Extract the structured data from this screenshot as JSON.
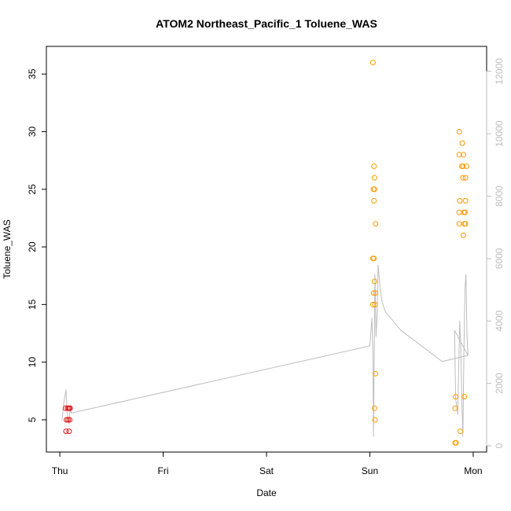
{
  "chart_data": {
    "type": "scatter",
    "title": "ATOM2 Northeast_Pacific_1 Toluene_WAS",
    "xlabel": "Date",
    "ylabel": "Toluene_WAS",
    "x_ticks": [
      "Thu",
      "Fri",
      "Sat",
      "Sun",
      "Mon"
    ],
    "x_tick_values": [
      0,
      1,
      2,
      3,
      4
    ],
    "xlim": [
      -0.13,
      4.13
    ],
    "ylim": [
      2.2,
      37.4
    ],
    "y_ticks": [
      5,
      10,
      15,
      20,
      25,
      30,
      35
    ],
    "y2lim": [
      -200,
      12800
    ],
    "y2_ticks": [
      0,
      2000,
      4000,
      6000,
      8000,
      10000,
      12000
    ],
    "colors": {
      "early": "#e31a1c",
      "late": "#ff9900",
      "altitude": "#bdbdbd"
    },
    "series": [
      {
        "color_key": "early",
        "points": [
          [
            0.055,
            6
          ],
          [
            0.065,
            5
          ],
          [
            0.06,
            4
          ],
          [
            0.075,
            6
          ],
          [
            0.085,
            6
          ],
          [
            0.08,
            5
          ],
          [
            0.09,
            4
          ],
          [
            0.095,
            5
          ],
          [
            0.1,
            6
          ],
          [
            0.09,
            6
          ]
        ]
      },
      {
        "color_key": "late",
        "points": [
          [
            3.03,
            36
          ],
          [
            3.04,
            27
          ],
          [
            3.045,
            26
          ],
          [
            3.035,
            25
          ],
          [
            3.045,
            25
          ],
          [
            3.04,
            24
          ],
          [
            3.055,
            22
          ],
          [
            3.03,
            19
          ],
          [
            3.04,
            19
          ],
          [
            3.045,
            17
          ],
          [
            3.035,
            16
          ],
          [
            3.055,
            16
          ],
          [
            3.03,
            15
          ],
          [
            3.05,
            15
          ],
          [
            3.055,
            9
          ],
          [
            3.045,
            6
          ],
          [
            3.05,
            5
          ],
          [
            3.83,
            7
          ],
          [
            3.825,
            6
          ],
          [
            3.825,
            3
          ],
          [
            3.835,
            3
          ],
          [
            3.865,
            30
          ],
          [
            3.895,
            29
          ],
          [
            3.865,
            28
          ],
          [
            3.905,
            28
          ],
          [
            3.89,
            27
          ],
          [
            3.9,
            27
          ],
          [
            3.935,
            27
          ],
          [
            3.9,
            26
          ],
          [
            3.925,
            26
          ],
          [
            3.87,
            24
          ],
          [
            3.925,
            24
          ],
          [
            3.865,
            23
          ],
          [
            3.91,
            23
          ],
          [
            3.92,
            23
          ],
          [
            3.865,
            22
          ],
          [
            3.915,
            22
          ],
          [
            3.925,
            22
          ],
          [
            3.905,
            21
          ],
          [
            3.915,
            7
          ],
          [
            3.875,
            4
          ]
        ]
      }
    ],
    "altitude_line": [
      [
        0.02,
        800
      ],
      [
        0.04,
        1400
      ],
      [
        0.06,
        1800
      ],
      [
        0.07,
        1100
      ],
      [
        0.08,
        900
      ],
      [
        0.09,
        700
      ],
      [
        0.1,
        1200
      ],
      [
        0.11,
        1050
      ],
      [
        3.0,
        3200
      ],
      [
        3.02,
        4100
      ],
      [
        3.03,
        3000
      ],
      [
        3.035,
        300
      ],
      [
        3.04,
        2000
      ],
      [
        3.05,
        5500
      ],
      [
        3.06,
        3500
      ],
      [
        3.07,
        4200
      ],
      [
        3.08,
        5800
      ],
      [
        3.1,
        5000
      ],
      [
        3.12,
        4600
      ],
      [
        3.15,
        4300
      ],
      [
        3.3,
        3700
      ],
      [
        3.5,
        3200
      ],
      [
        3.7,
        2700
      ],
      [
        3.95,
        2900
      ],
      [
        3.82,
        3700
      ],
      [
        3.83,
        1500
      ],
      [
        3.84,
        1300
      ],
      [
        3.85,
        1000
      ],
      [
        3.86,
        2500
      ],
      [
        3.87,
        4000
      ],
      [
        3.88,
        3200
      ],
      [
        3.89,
        1500
      ],
      [
        3.9,
        300
      ],
      [
        3.91,
        3000
      ],
      [
        3.92,
        5000
      ],
      [
        3.93,
        5500
      ],
      [
        3.94,
        3600
      ],
      [
        3.95,
        2900
      ]
    ]
  }
}
